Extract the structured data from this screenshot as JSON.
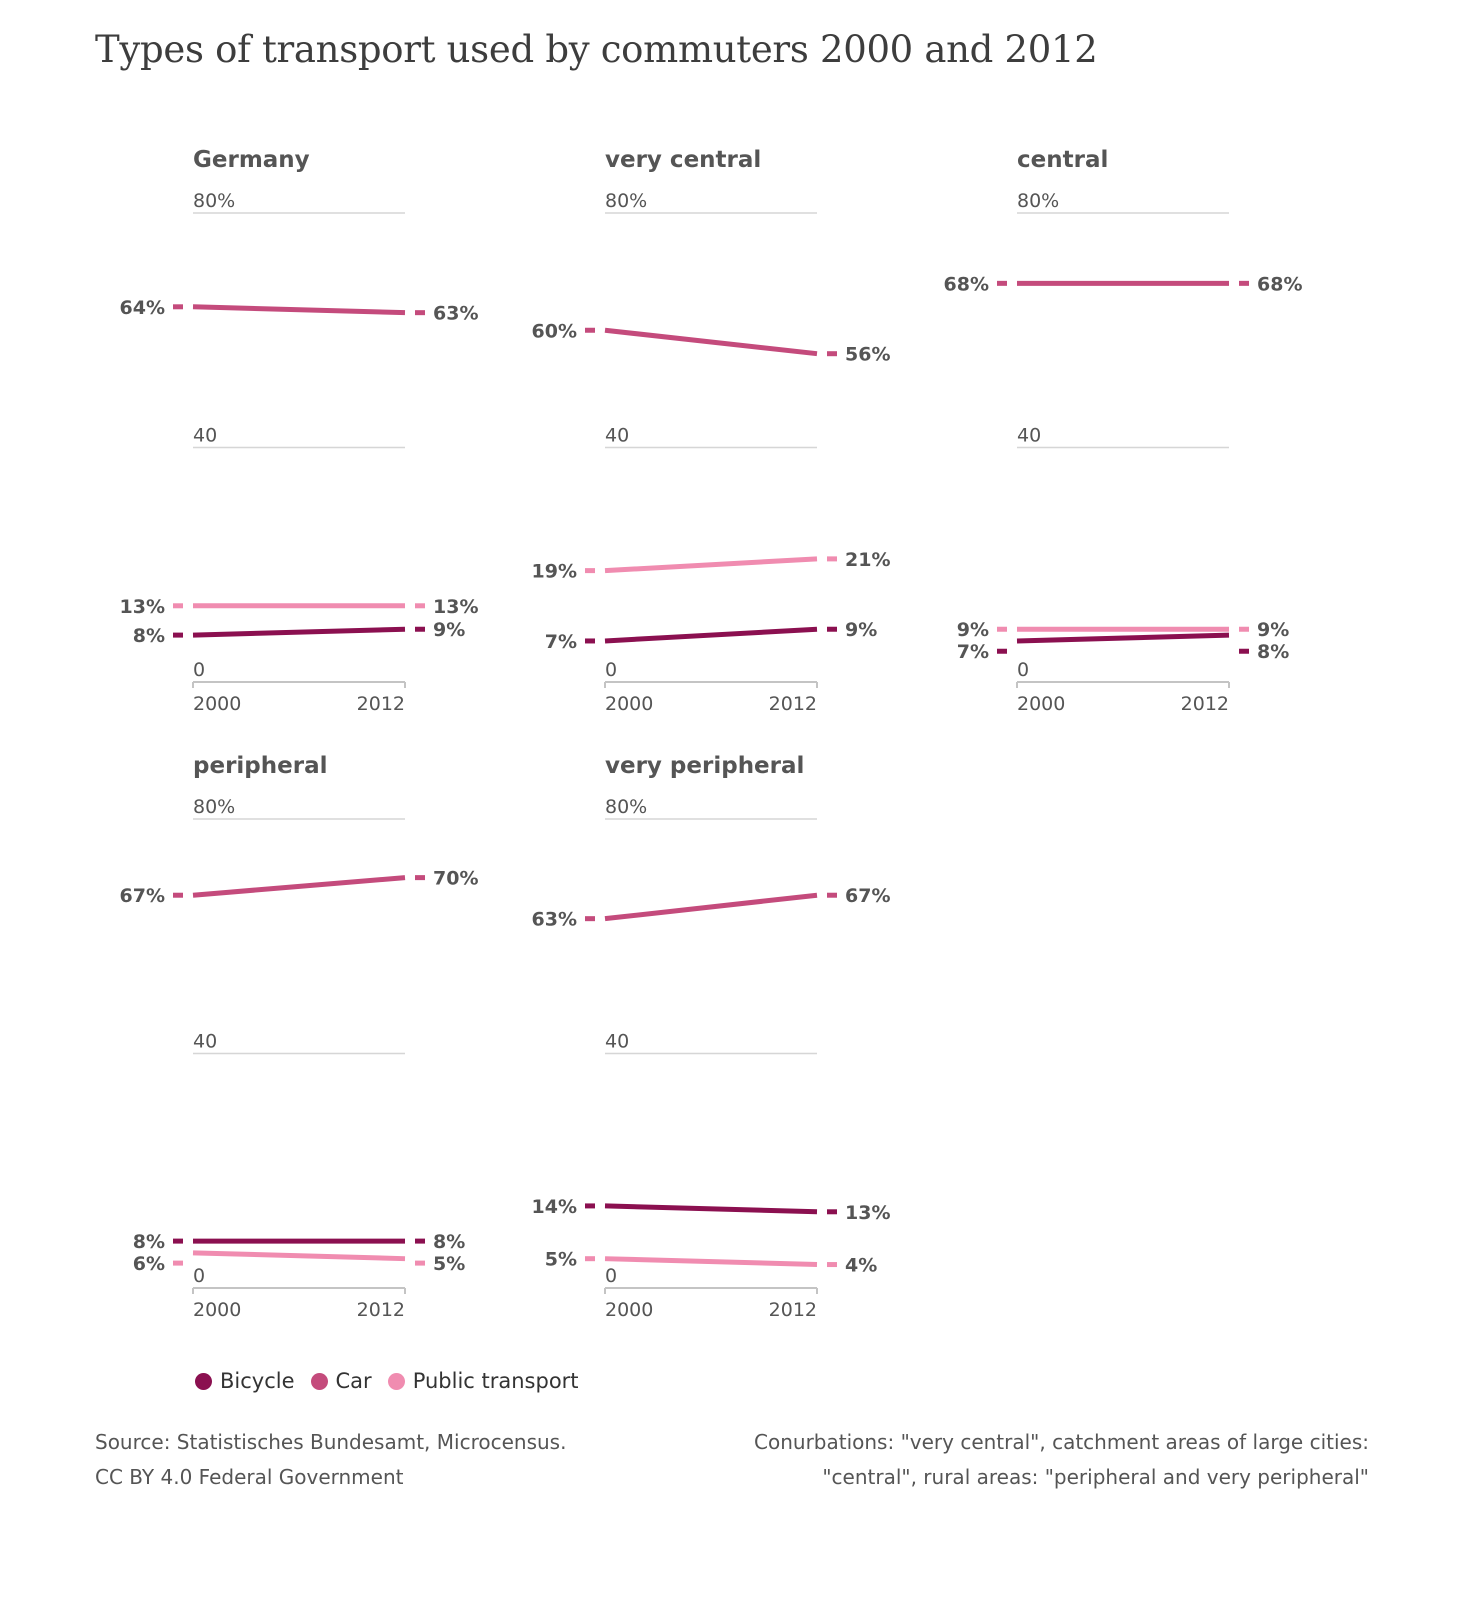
{
  "title": "Types of transport used by commuters 2000 and 2012",
  "colors": {
    "Bicycle": "#8b1050",
    "Car": "#c44b7c",
    "Public transport": "#f08cb0"
  },
  "legend": [
    {
      "label": "Bicycle",
      "color": "#8b1050"
    },
    {
      "label": "Car",
      "color": "#c44b7c"
    },
    {
      "label": "Public transport",
      "color": "#f08cb0"
    }
  ],
  "source_lines": [
    "Source: Statistisches Bundesamt, Microcensus.",
    "CC BY 4.0 Federal Government"
  ],
  "note_lines": [
    "Conurbations: \"very central\", catchment areas of large cities:",
    "\"central\", rural areas: \"peripheral and very peripheral\""
  ],
  "chart_data": [
    {
      "type": "line",
      "title": "Germany",
      "x": [
        "2000",
        "2012"
      ],
      "ylim": [
        0,
        80
      ],
      "yticks": [
        {
          "value": 80,
          "label": "80%"
        },
        {
          "value": 40,
          "label": "40"
        },
        {
          "value": 0,
          "label": "0"
        }
      ],
      "series": [
        {
          "name": "Bicycle",
          "values": [
            8,
            9
          ],
          "labels": [
            "8%",
            "9%"
          ]
        },
        {
          "name": "Car",
          "values": [
            64,
            63
          ],
          "labels": [
            "64%",
            "63%"
          ]
        },
        {
          "name": "Public transport",
          "values": [
            13,
            13
          ],
          "labels": [
            "13%",
            "13%"
          ]
        }
      ]
    },
    {
      "type": "line",
      "title": "very central",
      "x": [
        "2000",
        "2012"
      ],
      "ylim": [
        0,
        80
      ],
      "yticks": [
        {
          "value": 80,
          "label": "80%"
        },
        {
          "value": 40,
          "label": "40"
        },
        {
          "value": 0,
          "label": "0"
        }
      ],
      "series": [
        {
          "name": "Bicycle",
          "values": [
            7,
            9
          ],
          "labels": [
            "7%",
            "9%"
          ]
        },
        {
          "name": "Car",
          "values": [
            60,
            56
          ],
          "labels": [
            "60%",
            "56%"
          ]
        },
        {
          "name": "Public transport",
          "values": [
            19,
            21
          ],
          "labels": [
            "19%",
            "21%"
          ]
        }
      ]
    },
    {
      "type": "line",
      "title": "central",
      "x": [
        "2000",
        "2012"
      ],
      "ylim": [
        0,
        80
      ],
      "yticks": [
        {
          "value": 80,
          "label": "80%"
        },
        {
          "value": 40,
          "label": "40"
        },
        {
          "value": 0,
          "label": "0"
        }
      ],
      "series": [
        {
          "name": "Bicycle",
          "values": [
            7,
            8
          ],
          "labels": [
            "7%",
            "8%"
          ]
        },
        {
          "name": "Car",
          "values": [
            68,
            68
          ],
          "labels": [
            "68%",
            "68%"
          ]
        },
        {
          "name": "Public transport",
          "values": [
            9,
            9
          ],
          "labels": [
            "9%",
            "9%"
          ]
        }
      ]
    },
    {
      "type": "line",
      "title": "peripheral",
      "x": [
        "2000",
        "2012"
      ],
      "ylim": [
        0,
        80
      ],
      "yticks": [
        {
          "value": 80,
          "label": "80%"
        },
        {
          "value": 40,
          "label": "40"
        },
        {
          "value": 0,
          "label": "0"
        }
      ],
      "series": [
        {
          "name": "Bicycle",
          "values": [
            8,
            8
          ],
          "labels": [
            "8%",
            "8%"
          ]
        },
        {
          "name": "Car",
          "values": [
            67,
            70
          ],
          "labels": [
            "67%",
            "70%"
          ]
        },
        {
          "name": "Public transport",
          "values": [
            6,
            5
          ],
          "labels": [
            "6%",
            "5%"
          ]
        }
      ]
    },
    {
      "type": "line",
      "title": "very peripheral",
      "x": [
        "2000",
        "2012"
      ],
      "ylim": [
        0,
        80
      ],
      "yticks": [
        {
          "value": 80,
          "label": "80%"
        },
        {
          "value": 40,
          "label": "40"
        },
        {
          "value": 0,
          "label": "0"
        }
      ],
      "series": [
        {
          "name": "Bicycle",
          "values": [
            14,
            13
          ],
          "labels": [
            "14%",
            "13%"
          ]
        },
        {
          "name": "Car",
          "values": [
            63,
            67
          ],
          "labels": [
            "63%",
            "67%"
          ]
        },
        {
          "name": "Public transport",
          "values": [
            5,
            4
          ],
          "labels": [
            "5%",
            "4%"
          ]
        }
      ]
    }
  ]
}
